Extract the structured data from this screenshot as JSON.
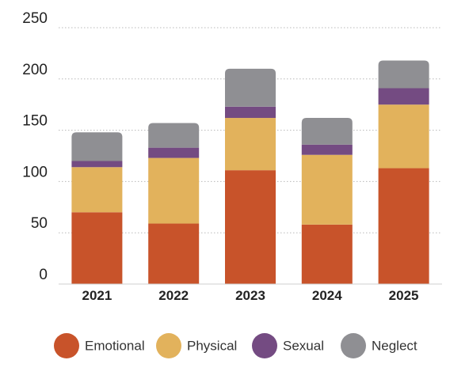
{
  "chart_data": {
    "type": "bar",
    "stacked": true,
    "categories": [
      "2021",
      "2022",
      "2023",
      "2024",
      "2025"
    ],
    "series": [
      {
        "name": "Emotional",
        "color": "#C8532A",
        "values": [
          70,
          59,
          111,
          58,
          113
        ]
      },
      {
        "name": "Physical",
        "color": "#E2B25C",
        "values": [
          44,
          64,
          51,
          68,
          62
        ]
      },
      {
        "name": "Sexual",
        "color": "#744B82",
        "values": [
          6,
          10,
          11,
          10,
          16
        ]
      },
      {
        "name": "Neglect",
        "color": "#8F8F93",
        "values": [
          28,
          24,
          37,
          26,
          27
        ]
      }
    ],
    "y_ticks": [
      "0",
      "50",
      "100",
      "150",
      "200",
      "250"
    ],
    "ylim": [
      0,
      250
    ],
    "grid": true,
    "legend_position": "bottom"
  }
}
